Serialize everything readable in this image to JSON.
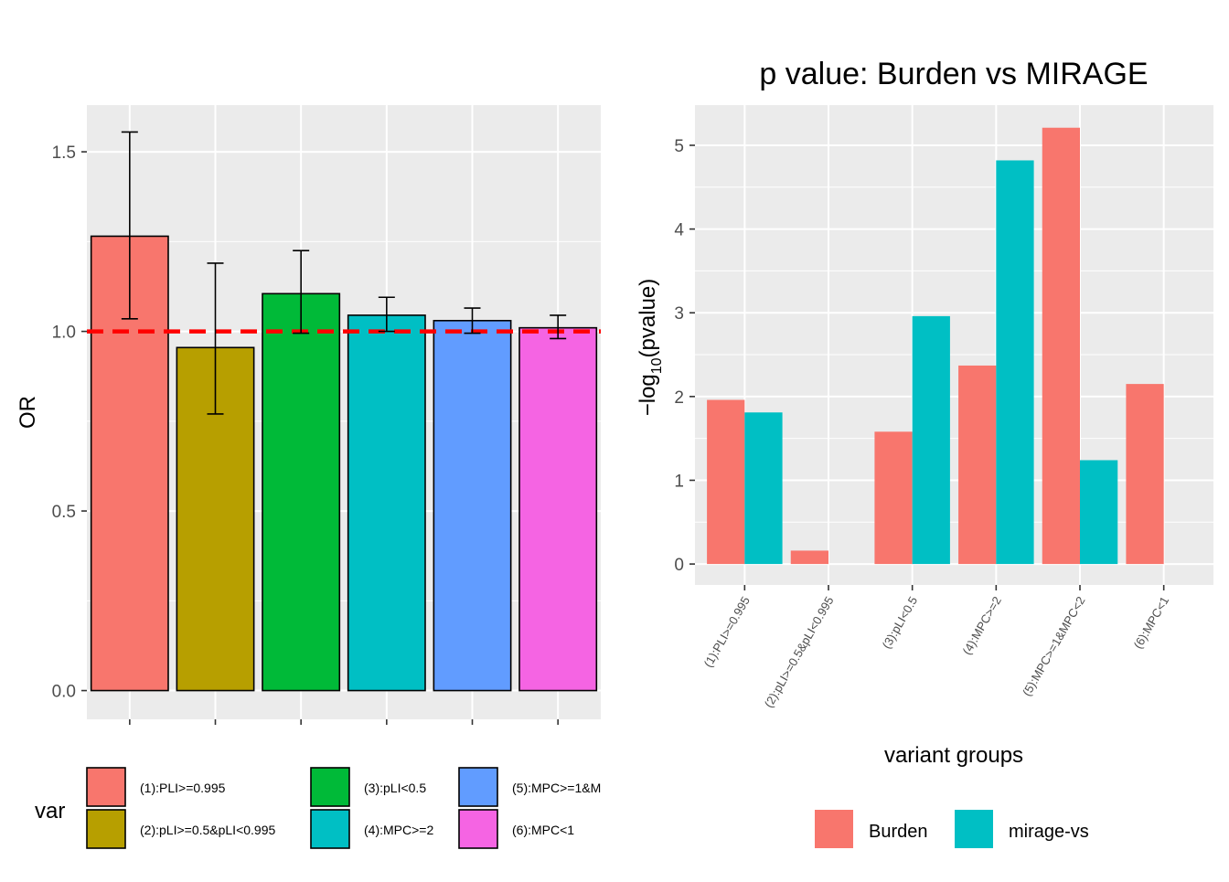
{
  "colors": {
    "panel_bg": "#EBEBEB",
    "grid": "#FFFFFF",
    "tick_text": "#4D4D4D",
    "ref_line": "#FF0000",
    "bar_outline": "#000000",
    "var_fill": [
      "#F8766D",
      "#B79F00",
      "#00BA38",
      "#00BFC4",
      "#619CFF",
      "#F564E3"
    ],
    "method_fill": [
      "#F8766D",
      "#00BFC4"
    ]
  },
  "chart_data": [
    {
      "type": "bar",
      "title": "",
      "xlabel": "",
      "ylabel": "OR",
      "ylim": [
        -0.08,
        1.63
      ],
      "yticks": [
        0.0,
        0.5,
        1.0,
        1.5
      ],
      "ytick_labels": [
        "0.0",
        "0.5",
        "1.0",
        "1.5"
      ],
      "reference_line": 1.0,
      "grid": true,
      "categories": [
        "(1):PLI>=0.995",
        "(2):pLI>=0.5&pLI<0.995",
        "(3):pLI<0.5",
        "(4):MPC>=2",
        "(5):MPC>=1&M",
        "(6):MPC<1"
      ],
      "values": [
        1.265,
        0.955,
        1.105,
        1.045,
        1.03,
        1.01
      ],
      "error_low": [
        1.035,
        0.77,
        0.995,
        1.0,
        0.995,
        0.98
      ],
      "error_high": [
        1.555,
        1.19,
        1.225,
        1.095,
        1.065,
        1.045
      ],
      "legend": {
        "title": "var",
        "position": "bottom",
        "entries": [
          "(1):PLI>=0.995",
          "(2):pLI>=0.5&pLI<0.995",
          "(3):pLI<0.5",
          "(4):MPC>=2",
          "(5):MPC>=1&M",
          "(6):MPC<1"
        ]
      }
    },
    {
      "type": "bar",
      "title": "p value: Burden vs MIRAGE",
      "xlabel": "variant groups",
      "ylabel": "-log10(pvalue)",
      "ylim": [
        -0.25,
        5.48
      ],
      "yticks": [
        0,
        1,
        2,
        3,
        4,
        5
      ],
      "ytick_labels": [
        "0",
        "1",
        "2",
        "3",
        "4",
        "5"
      ],
      "grid": true,
      "categories": [
        "(1):PLI>=0.995",
        "(2):pLI>=0.5&pLI<0.995",
        "(3):pLI<0.5",
        "(4):MPC>=2",
        "(5):MPC>=1&MPC<2",
        "(6):MPC<1"
      ],
      "series": [
        {
          "name": "Burden",
          "values": [
            1.96,
            0.16,
            1.58,
            2.37,
            5.21,
            2.15
          ]
        },
        {
          "name": "mirage-vs",
          "values": [
            1.81,
            0,
            2.96,
            4.82,
            1.24,
            0
          ]
        }
      ],
      "legend": {
        "title": "",
        "position": "bottom",
        "entries": [
          "Burden",
          "mirage-vs"
        ]
      }
    }
  ]
}
